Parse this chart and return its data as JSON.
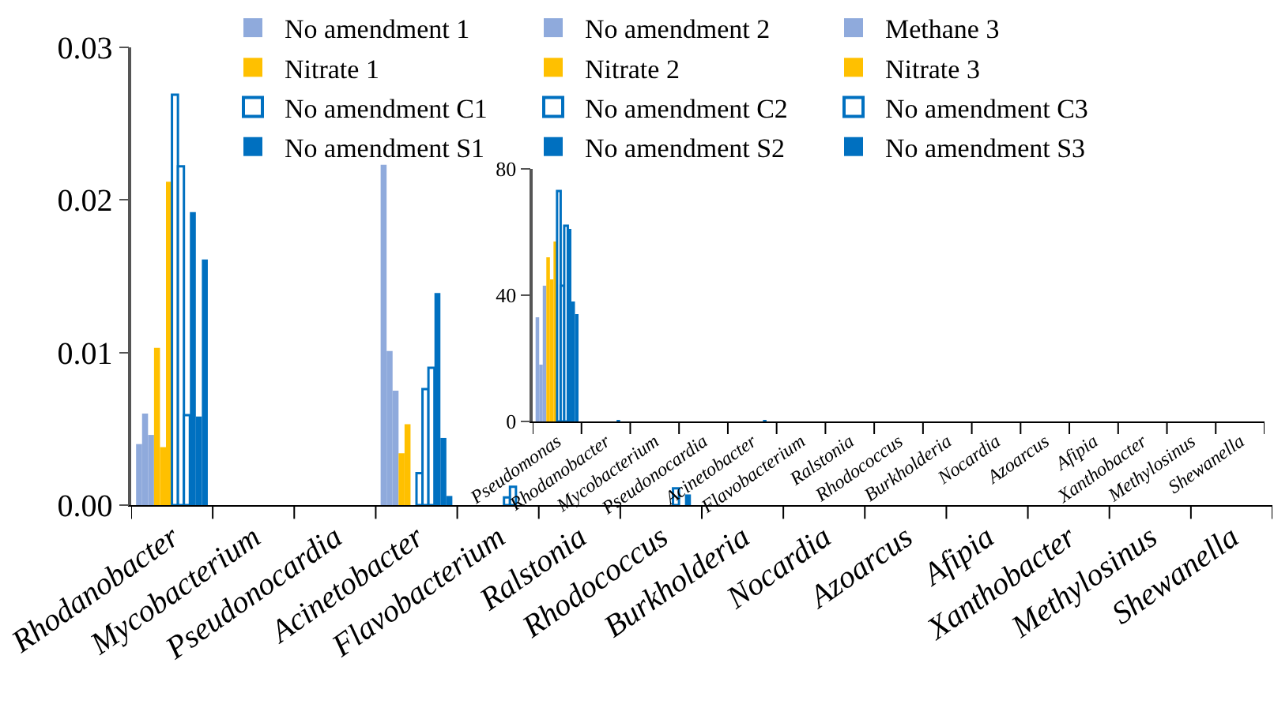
{
  "chart_data": [
    {
      "type": "bar",
      "legend": "top",
      "categories": [
        "Rhodanobacter",
        "Mycobacterium",
        "Pseudonocardia",
        "Acinetobacter",
        "Flavobacterium",
        "Ralstonia",
        "Rhodococcus",
        "Burkholderia",
        "Nocardia",
        "Azoarcus",
        "Afipia",
        "Xanthobacter",
        "Methylosinus",
        "Shewanella"
      ],
      "ylim": [
        0,
        0.03
      ],
      "yticks": [
        {
          "value": 0,
          "label": "0.00"
        },
        {
          "value": 0.01,
          "label": "0.01"
        },
        {
          "value": 0.02,
          "label": "0.02"
        },
        {
          "value": 0.03,
          "label": "0.03"
        }
      ],
      "series": [
        {
          "name": "No amendment 1",
          "color": "#8faadc",
          "values": [
            0.004,
            null,
            null,
            0.0223,
            null,
            null,
            null,
            null,
            null,
            null,
            null,
            null,
            null,
            null
          ]
        },
        {
          "name": "No amendment 2",
          "color": "#8faadc",
          "values": [
            0.006,
            null,
            null,
            0.0101,
            null,
            null,
            null,
            null,
            null,
            null,
            null,
            null,
            null,
            null
          ]
        },
        {
          "name": "Methane 3",
          "color": "#8faadc",
          "values": [
            0.0046,
            null,
            null,
            0.0075,
            null,
            null,
            null,
            null,
            null,
            null,
            null,
            null,
            null,
            null
          ]
        },
        {
          "name": "Nitrate 1",
          "color": "#ffc000",
          "values": [
            0.0103,
            null,
            null,
            0.0034,
            null,
            null,
            null,
            null,
            null,
            null,
            null,
            null,
            null,
            null
          ]
        },
        {
          "name": "Nitrate 2",
          "color": "#ffc000",
          "values": [
            0.0038,
            null,
            null,
            0.0053,
            null,
            null,
            null,
            null,
            null,
            null,
            null,
            null,
            null,
            null
          ]
        },
        {
          "name": "Nitrate 3",
          "color": "#ffc000",
          "values": [
            0.0212,
            null,
            null,
            null,
            null,
            null,
            null,
            null,
            null,
            null,
            null,
            null,
            null,
            null
          ]
        },
        {
          "name": "No amendment C1",
          "color": "#ffffff",
          "values": [
            0.0269,
            null,
            null,
            0.0021,
            null,
            null,
            null,
            null,
            null,
            null,
            null,
            null,
            null,
            null
          ]
        },
        {
          "name": "No amendment C2",
          "color": "#ffffff",
          "values": [
            0.0222,
            null,
            null,
            0.0076,
            0.0005,
            null,
            null,
            null,
            null,
            null,
            null,
            null,
            null,
            null
          ]
        },
        {
          "name": "No amendment C3",
          "color": "#ffffff",
          "values": [
            0.0059,
            null,
            null,
            0.009,
            0.0012,
            null,
            0.0011,
            null,
            null,
            null,
            null,
            null,
            null,
            null
          ]
        },
        {
          "name": "No amendment S1",
          "color": "#0070c0",
          "values": [
            0.0192,
            null,
            null,
            0.0139,
            null,
            null,
            null,
            null,
            null,
            null,
            null,
            null,
            null,
            null
          ]
        },
        {
          "name": "No amendment S2",
          "color": "#0070c0",
          "values": [
            0.0058,
            null,
            null,
            0.0044,
            null,
            null,
            0.0007,
            null,
            null,
            null,
            null,
            null,
            null,
            null
          ]
        },
        {
          "name": "No amendment S3",
          "color": "#0070c0",
          "values": [
            0.0161,
            null,
            null,
            0.0006,
            null,
            null,
            null,
            null,
            null,
            null,
            null,
            null,
            null,
            null
          ]
        }
      ]
    },
    {
      "type": "bar",
      "legend": false,
      "categories": [
        "Pseudomonas",
        "Rhodanobacter",
        "Mycobacterium",
        "Pseudonocardia",
        "Acinetobacter",
        "Flavobacterium",
        "Ralstonia",
        "Rhodococcus",
        "Burkholderia",
        "Nocardia",
        "Azoarcus",
        "Afipia",
        "Xanthobacter",
        "Methylosinus",
        "Shewanella"
      ],
      "ylim": [
        0,
        80
      ],
      "yticks": [
        0,
        40,
        80
      ],
      "series": [
        {
          "color": "#8faadc",
          "values": [
            33,
            null,
            null,
            null,
            null,
            null,
            null,
            null,
            null,
            null,
            null,
            null,
            null,
            null,
            null
          ]
        },
        {
          "color": "#8faadc",
          "values": [
            18,
            null,
            null,
            null,
            null,
            null,
            null,
            null,
            null,
            null,
            null,
            null,
            null,
            null,
            null
          ]
        },
        {
          "color": "#8faadc",
          "values": [
            43,
            null,
            null,
            null,
            null,
            null,
            null,
            null,
            null,
            null,
            null,
            null,
            null,
            null,
            null
          ]
        },
        {
          "color": "#ffc000",
          "values": [
            52,
            null,
            null,
            null,
            null,
            null,
            null,
            null,
            null,
            null,
            null,
            null,
            null,
            null,
            null
          ]
        },
        {
          "color": "#ffc000",
          "values": [
            45,
            null,
            null,
            null,
            null,
            null,
            null,
            null,
            null,
            null,
            null,
            null,
            null,
            null,
            null
          ]
        },
        {
          "color": "#ffc000",
          "values": [
            57,
            null,
            null,
            null,
            null,
            null,
            null,
            null,
            null,
            null,
            null,
            null,
            null,
            null,
            null
          ]
        },
        {
          "color": "#ffffff",
          "values": [
            73,
            null,
            null,
            null,
            null,
            null,
            null,
            null,
            null,
            null,
            null,
            null,
            null,
            null,
            null
          ]
        },
        {
          "color": "#ffffff",
          "values": [
            43,
            null,
            null,
            null,
            null,
            null,
            null,
            null,
            null,
            null,
            null,
            null,
            null,
            null,
            null
          ]
        },
        {
          "color": "#ffffff",
          "values": [
            62,
            null,
            null,
            null,
            null,
            null,
            null,
            null,
            null,
            null,
            null,
            null,
            null,
            null,
            null
          ]
        },
        {
          "color": "#0070c0",
          "values": [
            61,
            0.5,
            null,
            null,
            0.5,
            null,
            null,
            null,
            null,
            null,
            null,
            null,
            null,
            null,
            null
          ]
        },
        {
          "color": "#0070c0",
          "values": [
            38,
            null,
            null,
            null,
            null,
            null,
            null,
            null,
            null,
            null,
            null,
            null,
            null,
            null,
            null
          ]
        },
        {
          "color": "#0070c0",
          "values": [
            34,
            null,
            null,
            null,
            null,
            null,
            null,
            null,
            null,
            null,
            null,
            null,
            null,
            null,
            null
          ]
        }
      ]
    }
  ]
}
